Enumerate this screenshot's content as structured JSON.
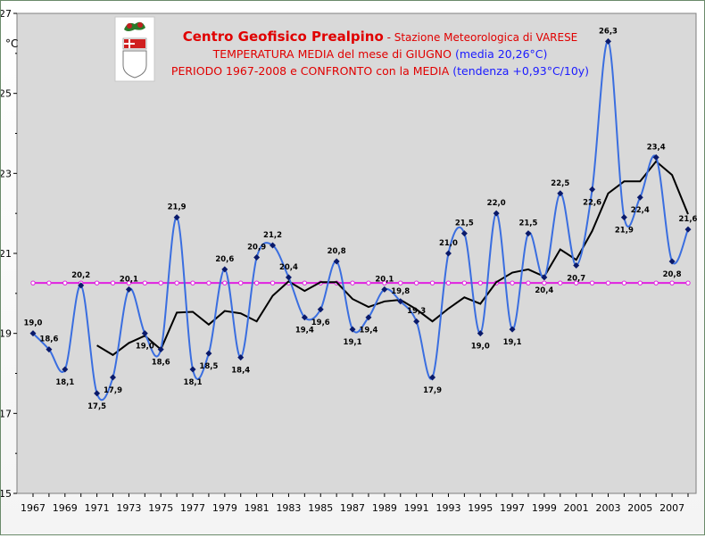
{
  "chart_data": {
    "type": "line",
    "title_main": "Centro Geofisico Prealpino",
    "title_station": " - Stazione Meteorologica di VARESE",
    "title_line2_a": "TEMPERATURA MEDIA del mese di GIUGNO ",
    "title_line2_b": "(media 20,26°C)",
    "title_line3_a": "PERIODO 1967-2008 e CONFRONTO con la MEDIA ",
    "title_line3_b": "(tendenza +0,93°C/10y)",
    "ylabel": "°C",
    "ylim": [
      15,
      27
    ],
    "yticks": [
      15,
      17,
      19,
      21,
      23,
      25,
      27
    ],
    "xlim": [
      1967,
      2008
    ],
    "xticks": [
      1967,
      1969,
      1971,
      1973,
      1975,
      1977,
      1979,
      1981,
      1983,
      1985,
      1987,
      1989,
      1991,
      1993,
      1995,
      1997,
      1999,
      2001,
      2003,
      2005,
      2007
    ],
    "grid": false,
    "colors": {
      "series": "#3a6ee0",
      "points": "#0a1a6a",
      "mean": "#e020e0",
      "moving_average": "#000000",
      "title_red": "#e00000",
      "title_blue": "#1a1aff"
    },
    "x": [
      1967,
      1968,
      1969,
      1970,
      1971,
      1972,
      1973,
      1974,
      1975,
      1976,
      1977,
      1978,
      1979,
      1980,
      1981,
      1982,
      1983,
      1984,
      1985,
      1986,
      1987,
      1988,
      1989,
      1990,
      1991,
      1992,
      1993,
      1994,
      1995,
      1996,
      1997,
      1998,
      1999,
      2000,
      2001,
      2002,
      2003,
      2004,
      2005,
      2006,
      2007,
      2008
    ],
    "series": [
      {
        "values": [
          19.0,
          18.6,
          18.1,
          20.2,
          17.5,
          17.9,
          20.1,
          19.0,
          18.6,
          21.9,
          18.1,
          18.5,
          20.6,
          18.4,
          20.9,
          21.2,
          20.4,
          19.4,
          19.6,
          20.8,
          19.1,
          19.4,
          20.1,
          19.8,
          19.3,
          17.9,
          21.0,
          21.5,
          19.0,
          22.0,
          19.1,
          21.5,
          20.4,
          22.5,
          20.7,
          22.6,
          26.3,
          21.9,
          22.4,
          23.4,
          20.8,
          21.6
        ]
      }
    ],
    "data_labels": [
      "19,0",
      "18,6",
      "18,1",
      "20,2",
      "17,5",
      "17,9",
      "20,1",
      "19,0",
      "18,6",
      "21,9",
      "18,1",
      "18,5",
      "20,6",
      "18,4",
      "20,9",
      "21,2",
      "20,4",
      "19,4",
      "19,6",
      "20,8",
      "19,1",
      "19,4",
      "20,1",
      "19,8",
      "19,3",
      "17,9",
      "21,0",
      "21,5",
      "19,0",
      "22,0",
      "19,1",
      "21,5",
      "20,4",
      "22,5",
      "20,7",
      "22,6",
      "26,3",
      "21,9",
      "22,4",
      "23,4",
      "20,8",
      "21,6"
    ],
    "mean_value": 20.26,
    "moving_average": {
      "x": [
        1971,
        1972,
        1973,
        1974,
        1975,
        1976,
        1977,
        1978,
        1979,
        1980,
        1981,
        1982,
        1983,
        1984,
        1985,
        1986,
        1987,
        1988,
        1989,
        1990,
        1991,
        1992,
        1993,
        1994,
        1995,
        1996,
        1997,
        1998,
        1999,
        2000,
        2001,
        2002,
        2003,
        2004,
        2005,
        2006,
        2007,
        2008
      ],
      "values": [
        18.7,
        18.46,
        18.76,
        18.94,
        18.6,
        19.52,
        19.54,
        19.22,
        19.56,
        19.5,
        19.3,
        19.94,
        20.3,
        20.06,
        20.28,
        20.28,
        19.86,
        19.66,
        19.8,
        19.84,
        19.6,
        19.3,
        19.62,
        19.9,
        19.74,
        20.28,
        20.52,
        20.6,
        20.42,
        21.1,
        20.84,
        21.56,
        22.5,
        22.8,
        22.8,
        23.3,
        22.96,
        21.98
      ]
    }
  }
}
